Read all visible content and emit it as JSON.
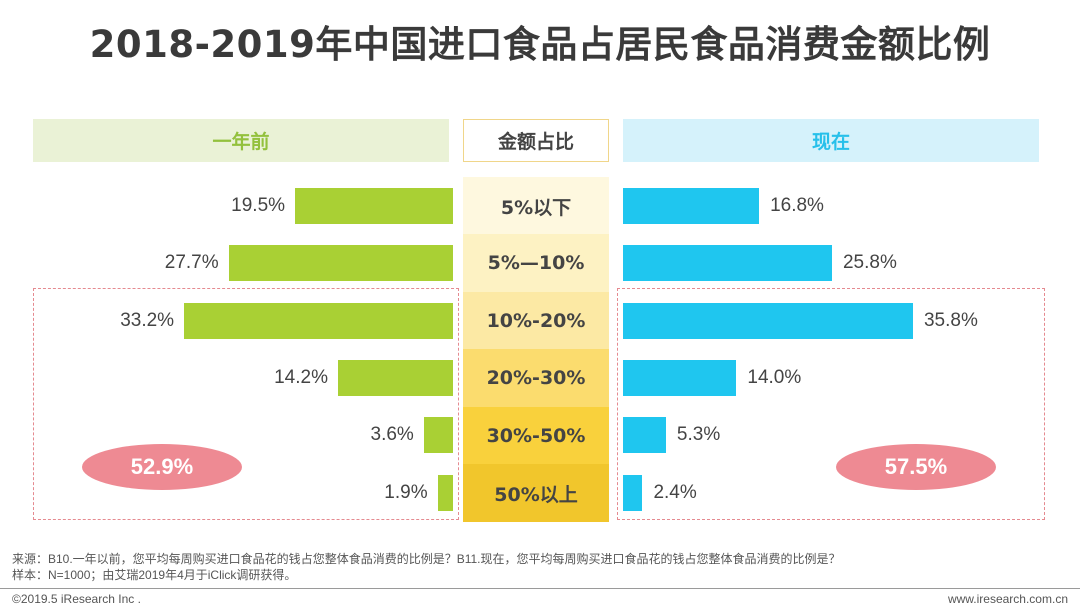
{
  "title": "2018-2019年中国进口食品占居民食品消费金额比例",
  "headers": {
    "left": "一年前",
    "middle": "金额占比",
    "right": "现在"
  },
  "chart_data": {
    "type": "bar",
    "title": "2018-2019年中国进口食品占居民食品消费金额比例",
    "categories": [
      "5%以下",
      "5%—10%",
      "10%-20%",
      "20%-30%",
      "30%-50%",
      "50%以上"
    ],
    "series": [
      {
        "name": "一年前",
        "values": [
          19.5,
          27.7,
          33.2,
          14.2,
          3.6,
          1.9
        ],
        "labels": [
          "19.5%",
          "27.7%",
          "33.2%",
          "14.2%",
          "3.6%",
          "1.9%"
        ]
      },
      {
        "name": "现在",
        "values": [
          16.8,
          25.8,
          35.8,
          14.0,
          5.3,
          2.4
        ],
        "labels": [
          "16.8%",
          "25.8%",
          "35.8%",
          "14.0%",
          "5.3%",
          "2.4%"
        ]
      }
    ],
    "category_colors": [
      "#fef8df",
      "#fdf2c3",
      "#fce9a4",
      "#fbdc6e",
      "#f9d13c",
      "#f1c62c"
    ],
    "series_colors": [
      "#a9d034",
      "#1fc6ef"
    ],
    "annotations": {
      "left_total": "52.9%",
      "right_total": "57.5%"
    }
  },
  "notes": {
    "source": "来源：B10.一年以前，您平均每周购买进口食品花的钱占您整体食品消费的比例是？B11.现在，您平均每周购买进口食品花的钱占您整体食品消费的比例是？",
    "sample": "样本：N=1000；由艾瑞2019年4月于iClick调研获得。"
  },
  "footer": {
    "copyright": "©2019.5 iResearch Inc .",
    "website": "www.iresearch.com.cn"
  }
}
